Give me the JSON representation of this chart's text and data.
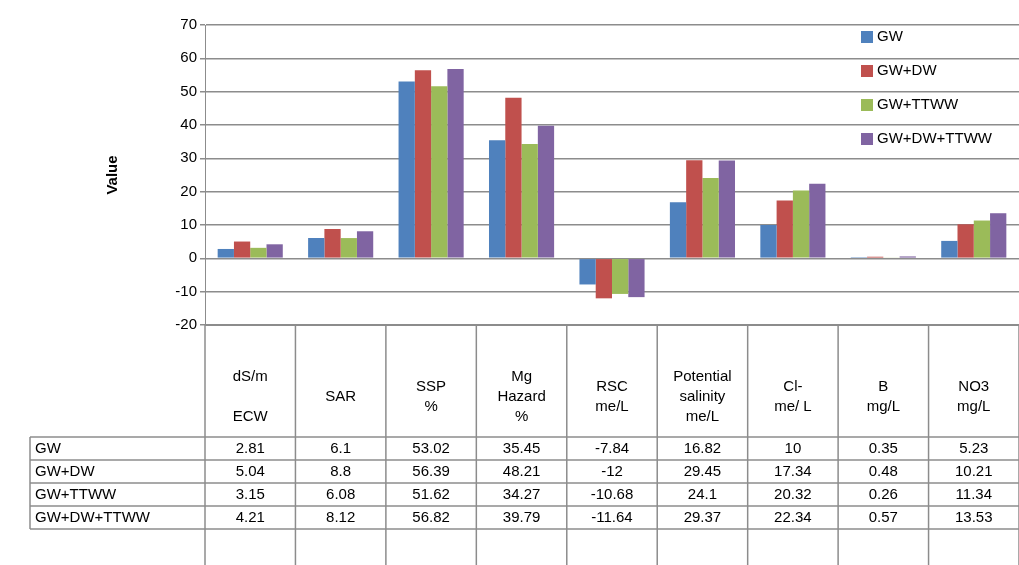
{
  "chart_data": {
    "type": "bar",
    "ylabel": "Value",
    "categories": [
      "dS/m\n\nECW",
      "SAR",
      "SSP\n%",
      "Mg\nHazard\n%",
      "RSC\nme/L",
      "Potential\nsalinity\nme/L",
      "Cl-\nme/ L",
      "B\nmg/L",
      "NO3\nmg/L"
    ],
    "series": [
      {
        "name": "GW",
        "color": "#4f81bd",
        "values": [
          2.81,
          6.1,
          53.02,
          35.45,
          -7.84,
          16.82,
          10,
          0.35,
          5.23
        ]
      },
      {
        "name": "GW+DW",
        "color": "#c0504d",
        "values": [
          5.04,
          8.8,
          56.39,
          48.21,
          -12,
          29.45,
          17.34,
          0.48,
          10.21
        ]
      },
      {
        "name": "GW+TTWW",
        "color": "#9bbb59",
        "values": [
          3.15,
          6.08,
          51.62,
          34.27,
          -10.68,
          24.1,
          20.32,
          0.26,
          11.34
        ]
      },
      {
        "name": "GW+DW+TTWW",
        "color": "#8064a2",
        "values": [
          4.21,
          8.12,
          56.82,
          39.79,
          -11.64,
          29.37,
          22.34,
          0.57,
          13.53
        ]
      }
    ],
    "ylim": [
      -20,
      70
    ],
    "yticks": [
      -20,
      -10,
      0,
      10,
      20,
      30,
      40,
      50,
      60,
      70
    ],
    "grid": "y",
    "legend": "top right",
    "data_labels": true
  }
}
